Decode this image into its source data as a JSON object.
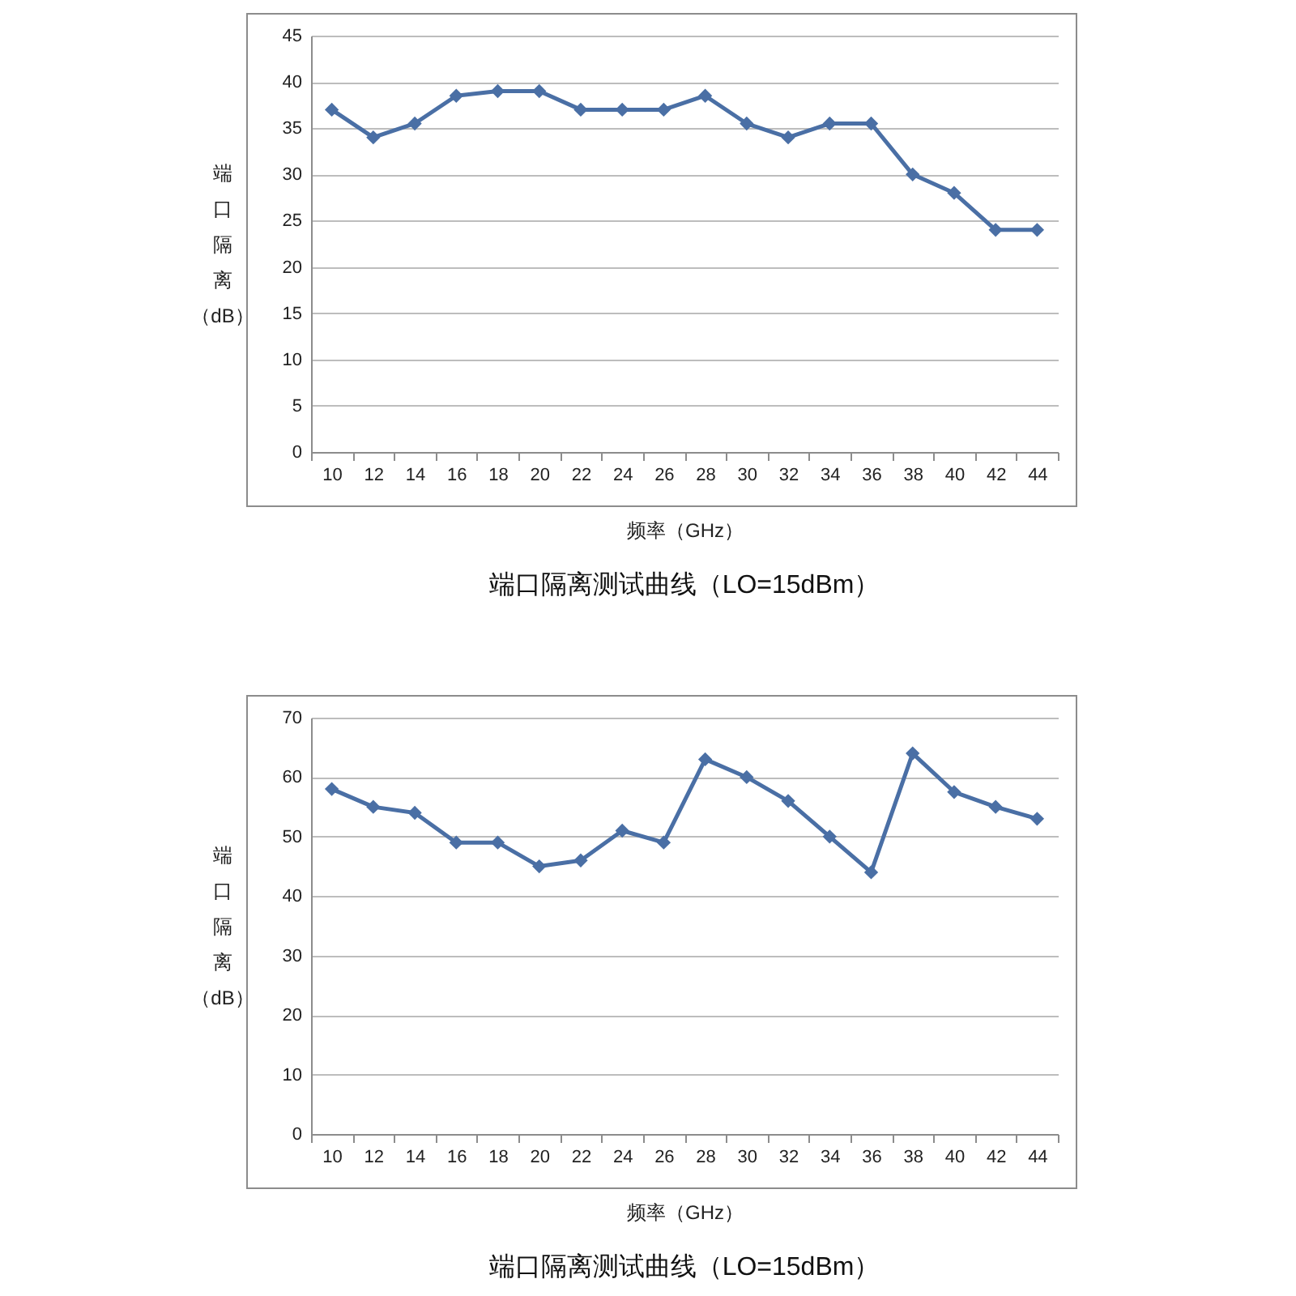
{
  "chart_data": [
    {
      "type": "line",
      "title": "端口隔离测试曲线（LO=15dBm）",
      "xlabel": "频率（GHz）",
      "ylabel": "端口隔离（dB）",
      "categories": [
        "10",
        "12",
        "14",
        "16",
        "18",
        "20",
        "22",
        "24",
        "26",
        "28",
        "30",
        "32",
        "34",
        "36",
        "38",
        "40",
        "42",
        "44"
      ],
      "values": [
        37,
        34,
        35.5,
        38.5,
        39,
        39,
        37,
        37,
        37,
        38.5,
        35.5,
        34,
        35.5,
        35.5,
        30,
        28,
        24,
        24
      ],
      "color": "#4a6fa5",
      "ylim": [
        0,
        45
      ],
      "yticks": [
        0,
        5,
        10,
        15,
        20,
        25,
        30,
        35,
        40,
        45
      ],
      "grid": "y",
      "marker": "diamond"
    },
    {
      "type": "line",
      "title": "端口隔离测试曲线（LO=15dBm）",
      "xlabel": "频率（GHz）",
      "ylabel": "端口隔离（dB）",
      "categories": [
        "10",
        "12",
        "14",
        "16",
        "18",
        "20",
        "22",
        "24",
        "26",
        "28",
        "30",
        "32",
        "34",
        "36",
        "38",
        "40",
        "42",
        "44"
      ],
      "values": [
        58,
        55,
        54,
        49,
        49,
        45,
        46,
        51,
        49,
        63,
        60,
        56,
        50,
        44,
        64,
        57.5,
        55,
        53
      ],
      "color": "#4a6fa5",
      "ylim": [
        0,
        70
      ],
      "yticks": [
        0,
        10,
        20,
        30,
        40,
        50,
        60,
        70
      ],
      "grid": "y",
      "marker": "diamond"
    }
  ]
}
